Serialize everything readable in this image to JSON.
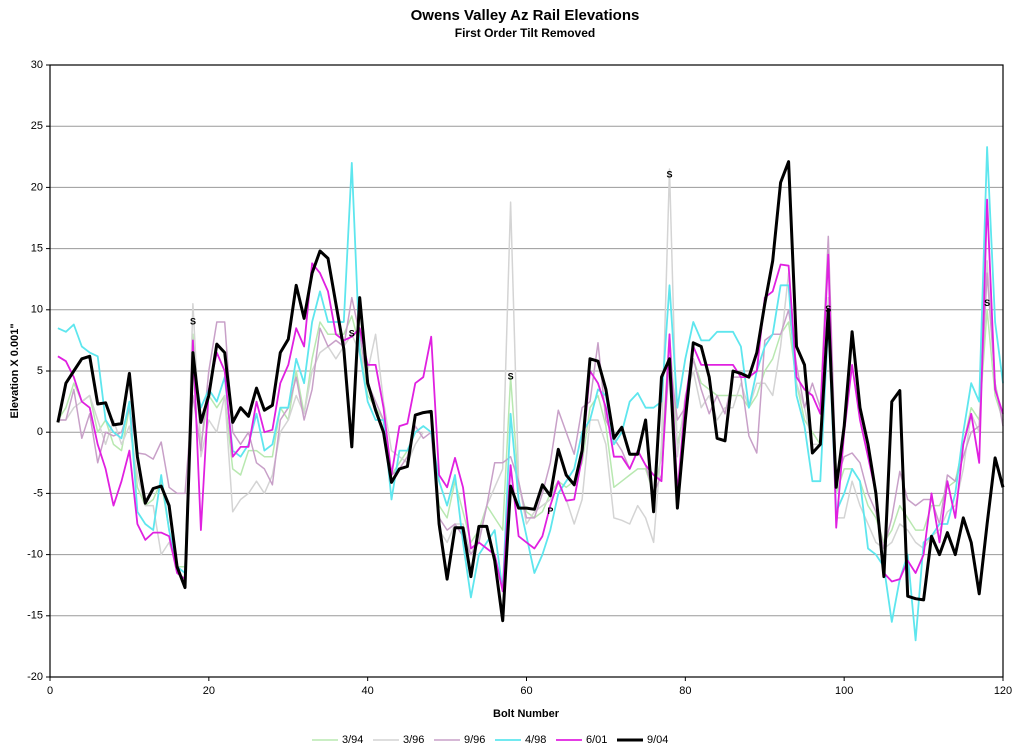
{
  "chart_data": {
    "type": "line",
    "title": "Owens Valley Az Rail Elevations",
    "subtitle": "First Order Tilt Removed",
    "x_label": "Bolt Number",
    "y_label": "Elevation X 0.001\"",
    "xlim": [
      0,
      120
    ],
    "xticks": [
      0,
      20,
      40,
      60,
      80,
      100,
      120
    ],
    "ylim": [
      -20,
      30
    ],
    "yticks": [
      -20,
      -15,
      -10,
      -5,
      0,
      5,
      10,
      15,
      20,
      25,
      30
    ],
    "grid": true,
    "legend": "bottom",
    "x": [
      1,
      2,
      3,
      4,
      5,
      6,
      7,
      8,
      9,
      10,
      11,
      12,
      13,
      14,
      15,
      16,
      17,
      18,
      19,
      20,
      21,
      22,
      23,
      24,
      25,
      26,
      27,
      28,
      29,
      30,
      31,
      32,
      33,
      34,
      35,
      36,
      37,
      38,
      39,
      40,
      41,
      42,
      43,
      44,
      45,
      46,
      47,
      48,
      49,
      50,
      51,
      52,
      53,
      54,
      55,
      56,
      57,
      58,
      59,
      60,
      61,
      62,
      63,
      64,
      65,
      66,
      67,
      68,
      69,
      70,
      71,
      72,
      73,
      74,
      75,
      76,
      77,
      78,
      79,
      80,
      81,
      82,
      83,
      84,
      85,
      86,
      87,
      88,
      89,
      90,
      91,
      92,
      93,
      94,
      95,
      96,
      97,
      98,
      99,
      100,
      101,
      102,
      103,
      104,
      105,
      106,
      107,
      108,
      109,
      110,
      111,
      112,
      113,
      114,
      115,
      116,
      117,
      118,
      119,
      120
    ],
    "series": [
      {
        "name": "3/94",
        "color": "#b8e8b0",
        "width": 1.5,
        "values": [
          1,
          2,
          4,
          2.5,
          3,
          0,
          1,
          -1,
          -1.5,
          2,
          -4.5,
          -6,
          -5.5,
          -4,
          -8,
          -11,
          -11,
          8,
          -1,
          3,
          2,
          3,
          -3,
          -3.5,
          -1.5,
          -1.5,
          -2,
          -2,
          2,
          1,
          5,
          1.5,
          6,
          9,
          8,
          8,
          8,
          9.5,
          7,
          3,
          2,
          1,
          -3.5,
          -2.5,
          -1.5,
          0,
          0.5,
          0,
          -6,
          -7,
          -4,
          -6.5,
          -9,
          -8,
          -6,
          -7,
          -8,
          4.5,
          -4.5,
          -6.5,
          -7,
          -6.5,
          -5,
          -4,
          -4.5,
          -4,
          -2.5,
          2,
          3,
          0.5,
          -4.5,
          -4,
          -3.5,
          -3,
          -3,
          -5,
          -2,
          8,
          -1,
          2,
          6,
          4,
          3.5,
          3,
          3,
          3,
          3,
          2,
          3,
          5,
          6,
          8,
          9,
          4,
          1,
          0,
          -1,
          9,
          -5,
          -3,
          -3,
          -4,
          -6,
          -7,
          -9,
          -8,
          -6,
          -7,
          -8,
          -8,
          -6,
          -6,
          -4.5,
          -4,
          -1,
          2,
          1,
          10,
          3,
          1
        ]
      },
      {
        "name": "3/96",
        "color": "#d4d4d4",
        "width": 1.5,
        "values": [
          1,
          1,
          2,
          2.5,
          3,
          1,
          -1,
          1,
          -1,
          0.5,
          -3.5,
          -6,
          -6,
          -10,
          -9,
          -11,
          -11.5,
          10.5,
          -2,
          1,
          0,
          3,
          -6.5,
          -5.5,
          -5,
          -4,
          -5,
          -3.5,
          0,
          1,
          3,
          1.5,
          5,
          6.5,
          7,
          6,
          7,
          8,
          6.5,
          5,
          8,
          2.5,
          -1.5,
          -2,
          -2.5,
          -1,
          0,
          0,
          -8,
          -9,
          -7.5,
          -7.5,
          -10,
          -8.5,
          -6,
          -4.5,
          -3,
          18.8,
          -4,
          -7.5,
          -6.5,
          -6,
          -5.5,
          -4,
          -5.5,
          -7.5,
          -5.5,
          1,
          1,
          -1,
          -7,
          -7.2,
          -7.5,
          -6,
          -7,
          -9,
          -1,
          21.5,
          -2,
          3,
          5,
          2,
          3,
          1,
          2,
          2,
          4,
          2,
          4,
          4,
          3,
          7,
          13,
          4,
          2,
          -1,
          -1,
          11,
          -7,
          -7,
          -4,
          -6,
          -7.5,
          -9,
          -9.5,
          -9,
          -7.5,
          -8,
          -9,
          -9.5,
          -8.5,
          -8,
          -6.5,
          -6,
          -3,
          1.5,
          0,
          14,
          4,
          1
        ]
      },
      {
        "name": "9/96",
        "color": "#c8a0c8",
        "width": 1.5,
        "values": [
          1,
          1,
          3.5,
          -0.5,
          1.5,
          -2.5,
          0,
          -0.3,
          0,
          2,
          -1.7,
          -1.8,
          -2.2,
          -0.8,
          -4.5,
          -5,
          -5,
          3,
          -1.5,
          5,
          9,
          9,
          0,
          -1,
          0,
          -2.5,
          -3,
          -4.3,
          1,
          2,
          4.5,
          1,
          3.5,
          8.5,
          7,
          7.5,
          7,
          11,
          8,
          4,
          2.5,
          1,
          -3.5,
          -3,
          -2,
          0.5,
          -0.5,
          0,
          -7,
          -8,
          -7.5,
          -8.5,
          -10,
          -9,
          -6,
          -2.5,
          -2.5,
          -2,
          -4,
          -7,
          -7,
          -5,
          -2.5,
          1.8,
          0,
          -1.8,
          2,
          2.5,
          7.3,
          1,
          -0.5,
          -1.5,
          -3,
          -1.5,
          -2.7,
          -5,
          -3.5,
          6,
          1,
          2,
          6,
          3.5,
          1.5,
          3,
          1.5,
          4.5,
          4.5,
          -0.3,
          -1.7,
          7.5,
          8,
          8,
          10,
          5.5,
          2,
          4,
          2,
          16,
          -4,
          -2,
          -1.7,
          -2.5,
          -5,
          -6.5,
          -9.5,
          -7,
          -3.2,
          -5.5,
          -6,
          -5.5,
          -5.5,
          -7.5,
          -3.5,
          -4,
          -2,
          0,
          0.5,
          13,
          4,
          0.5
        ]
      },
      {
        "name": "4/98",
        "color": "#5ee6ee",
        "width": 1.8,
        "values": [
          8.5,
          8.2,
          8.8,
          7,
          6.5,
          6.2,
          1,
          0,
          -0.5,
          2.5,
          -6.5,
          -7.5,
          -8,
          -3.5,
          -8,
          -11,
          -11.5,
          5.5,
          2,
          3.5,
          2.5,
          4.5,
          -1.5,
          -2,
          -1,
          1.5,
          -1.5,
          -1,
          2,
          2,
          6,
          4,
          9,
          11.5,
          9,
          9,
          9,
          22,
          6.5,
          2.5,
          1,
          1,
          -5.5,
          -1.5,
          -1.5,
          0,
          0.5,
          0,
          -4,
          -6,
          -3.5,
          -9,
          -13.5,
          -10,
          -9,
          -8,
          -13,
          1.5,
          -5.5,
          -8.5,
          -11.5,
          -10,
          -8,
          -5,
          -4,
          -3,
          0,
          1,
          3.5,
          3,
          -1,
          0,
          2.5,
          3.2,
          2,
          2,
          2.5,
          12,
          2,
          6,
          9,
          7.5,
          7.5,
          8.2,
          8.2,
          8.2,
          7,
          2,
          5,
          7,
          8,
          12,
          12,
          3,
          0.5,
          -4,
          -4,
          9,
          -6.5,
          -5,
          -3,
          -4,
          -9.5,
          -10,
          -11,
          -15.5,
          -12,
          -10,
          -17,
          -9,
          -8.5,
          -7.5,
          -7.5,
          -5,
          0,
          4,
          2.5,
          23.3,
          9,
          4
        ]
      },
      {
        "name": "6/01",
        "color": "#e020e0",
        "width": 1.8,
        "values": [
          6.2,
          5.8,
          4.5,
          2.5,
          2,
          -1,
          -3,
          -6,
          -4,
          -1.5,
          -7.5,
          -8.8,
          -8.2,
          -8.2,
          -8.5,
          -11.5,
          -12,
          7.5,
          -8,
          3.5,
          6.5,
          5,
          -2,
          -1.2,
          -1.2,
          2.5,
          0,
          0.2,
          4,
          5.5,
          8.5,
          7,
          13.8,
          13,
          11.5,
          8,
          7.5,
          7.8,
          8.5,
          5.5,
          5.5,
          2,
          -3.5,
          0.5,
          0.7,
          4,
          4.5,
          7.8,
          -3.5,
          -4.5,
          -2.1,
          -4.5,
          -9.5,
          -9,
          -9.5,
          -10,
          -13,
          -2.7,
          -8.5,
          -9,
          -9.5,
          -8.5,
          -6,
          -4,
          -5.6,
          -5.5,
          -2,
          5,
          4,
          2,
          -2,
          -2,
          -3,
          -1.5,
          -2.7,
          -3.5,
          -4,
          8,
          -5,
          2.5,
          7,
          5.5,
          5.5,
          5.5,
          5.5,
          5.5,
          4.5,
          4.5,
          5,
          11,
          11.5,
          13.7,
          13.6,
          4.5,
          3.5,
          3,
          1.5,
          14.5,
          -7.8,
          0,
          5.5,
          1,
          -2,
          -5,
          -11.5,
          -12.2,
          -12,
          -10.5,
          -11.5,
          -10,
          -5,
          -9,
          -4,
          -7,
          -1,
          1.5,
          -2.5,
          19,
          3.5,
          1.5
        ]
      },
      {
        "name": "9/04",
        "color": "#000000",
        "width": 3,
        "values": [
          0.8,
          4,
          5,
          6,
          6.2,
          2.3,
          2.4,
          0.6,
          0.7,
          4.8,
          -2,
          -5.8,
          -4.6,
          -4.4,
          -6,
          -11,
          -12.7,
          6.5,
          0.8,
          3,
          7.2,
          6.5,
          0.8,
          2,
          1.3,
          3.6,
          1.8,
          2.2,
          6.5,
          7.6,
          12,
          9.3,
          13,
          14.8,
          14.2,
          10.5,
          6.8,
          -1.2,
          11,
          4,
          1.8,
          0,
          -4.1,
          -3,
          -2.8,
          1.4,
          1.6,
          1.7,
          -7.5,
          -12,
          -7.8,
          -7.8,
          -11.8,
          -7.7,
          -7.7,
          -10.5,
          -15.4,
          -4.4,
          -6.2,
          -6.2,
          -6.3,
          -4.3,
          -5.2,
          -1.4,
          -3.5,
          -4.3,
          -1.5,
          6,
          5.8,
          3.5,
          -0.5,
          0.4,
          -1.8,
          -1.8,
          1,
          -6.5,
          4.5,
          6,
          -6.2,
          1,
          7.3,
          7,
          4.5,
          -0.5,
          -0.7,
          5,
          4.8,
          4.5,
          6.5,
          10.5,
          14,
          20.4,
          22.1,
          7,
          5.5,
          -1.7,
          -1,
          10,
          -4.5,
          0.5,
          8.2,
          2,
          -1,
          -5,
          -11.8,
          2.5,
          3.4,
          -13.4,
          -13.6,
          -13.7,
          -8.5,
          -10,
          -8.2,
          -10,
          -7,
          -9,
          -13.2,
          -7.5,
          -2.1,
          -4.5
        ]
      }
    ],
    "annotations": [
      {
        "text": "S",
        "x": 18,
        "y": 9
      },
      {
        "text": "S",
        "x": 38,
        "y": 8
      },
      {
        "text": "S",
        "x": 58,
        "y": 4.5
      },
      {
        "text": "P",
        "x": 63,
        "y": -6.5
      },
      {
        "text": "S",
        "x": 78,
        "y": 21
      },
      {
        "text": "S",
        "x": 98,
        "y": 10
      },
      {
        "text": "S",
        "x": 118,
        "y": 10.5
      }
    ]
  }
}
